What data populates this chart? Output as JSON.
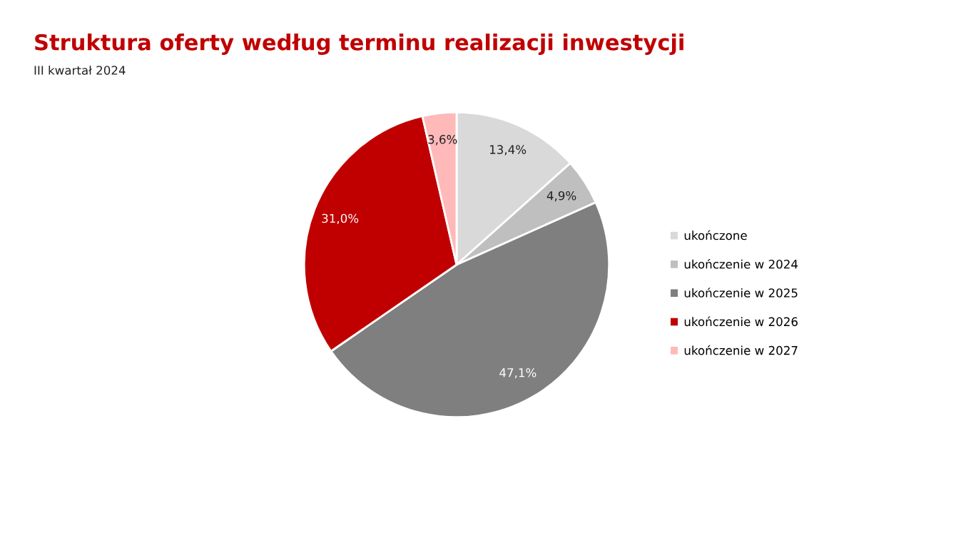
{
  "chart_data": {
    "type": "pie",
    "title": "Struktura oferty według terminu realizacji inwestycji",
    "subtitle": "III kwartał 2024",
    "categories": [
      "ukończone",
      "ukończenie w 2024",
      "ukończenie w 2025",
      "ukończenie w 2026",
      "ukończenie w 2027"
    ],
    "values": [
      13.4,
      4.9,
      47.1,
      31.0,
      3.6
    ],
    "value_labels": [
      "13,4%",
      "4,9%",
      "47,1%",
      "31,0%",
      "3,6%"
    ],
    "colors": [
      "#d9d9d9",
      "#bfbfbf",
      "#7f7f7f",
      "#c00000",
      "#ffb9b9"
    ],
    "legend": "right"
  }
}
